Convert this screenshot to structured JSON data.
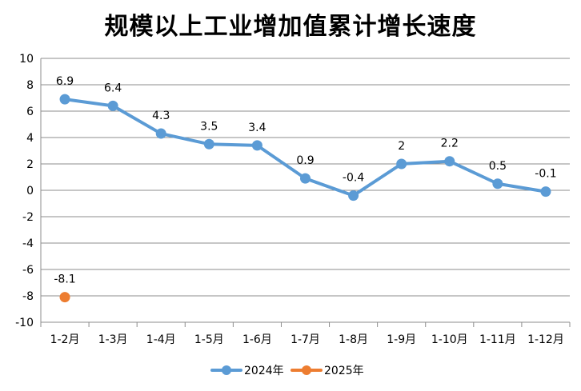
{
  "chart_data": {
    "type": "line",
    "title": "规模以上工业增加值累计增长速度",
    "categories": [
      "1-2月",
      "1-3月",
      "1-4月",
      "1-5月",
      "1-6月",
      "1-7月",
      "1-8月",
      "1-9月",
      "1-10月",
      "1-11月",
      "1-12月"
    ],
    "series": [
      {
        "name": "2024年",
        "color": "#5B9BD5",
        "values": [
          6.9,
          6.4,
          4.3,
          3.5,
          3.4,
          0.9,
          -0.4,
          2,
          2.2,
          0.5,
          -0.1
        ],
        "labels": [
          "6.9",
          "6.4",
          "4.3",
          "3.5",
          "3.4",
          "0.9",
          "-0.4",
          "2",
          "2.2",
          "0.5",
          "-0.1"
        ]
      },
      {
        "name": "2025年",
        "color": "#ED7D31",
        "values": [
          -8.1,
          null,
          null,
          null,
          null,
          null,
          null,
          null,
          null,
          null,
          null
        ],
        "labels": [
          "-8.1",
          "",
          "",
          "",
          "",
          "",
          "",
          "",
          "",
          "",
          ""
        ]
      }
    ],
    "ylim": [
      -10,
      10
    ],
    "yticks": [
      10,
      8,
      6,
      4,
      2,
      0,
      -2,
      -4,
      -6,
      -8,
      -10
    ],
    "ytick_labels": [
      "10",
      "8",
      "6",
      "4",
      "2",
      "0",
      "-2",
      "-4",
      "-6",
      "-8",
      "-10"
    ],
    "grid": true,
    "legend": "bottom"
  }
}
